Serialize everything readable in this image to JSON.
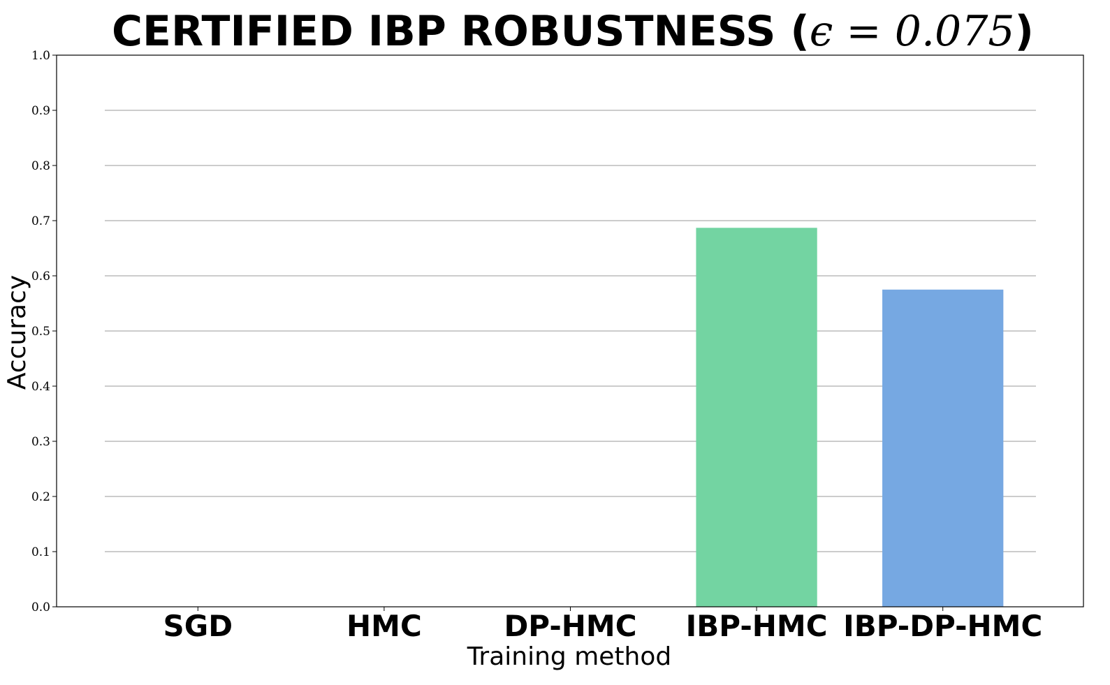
{
  "chart_data": {
    "type": "bar",
    "title": "CERTIFIED IBP ROBUSTNESS (",
    "title_math": "ϵ = 0.075",
    "title_close": ")",
    "xlabel": "Training method",
    "ylabel": "Accuracy",
    "ylim": [
      0.0,
      1.0
    ],
    "yticks": [
      "0.0",
      "0.1",
      "0.2",
      "0.3",
      "0.4",
      "0.5",
      "0.6",
      "0.7",
      "0.8",
      "0.9",
      "1.0"
    ],
    "categories": [
      "SGD",
      "HMC",
      "DP-HMC",
      "IBP-HMC",
      "IBP-DP-HMC"
    ],
    "values": [
      0.0,
      0.0,
      0.0,
      0.687,
      0.575
    ],
    "bar_colors": [
      "#5fb6e8",
      "#e8a15f",
      "#c97fd6",
      "#73d4a2",
      "#76a8e2"
    ],
    "grid": true,
    "grid_axis": "y",
    "grid_color": "#cccccc",
    "legend": "none"
  }
}
